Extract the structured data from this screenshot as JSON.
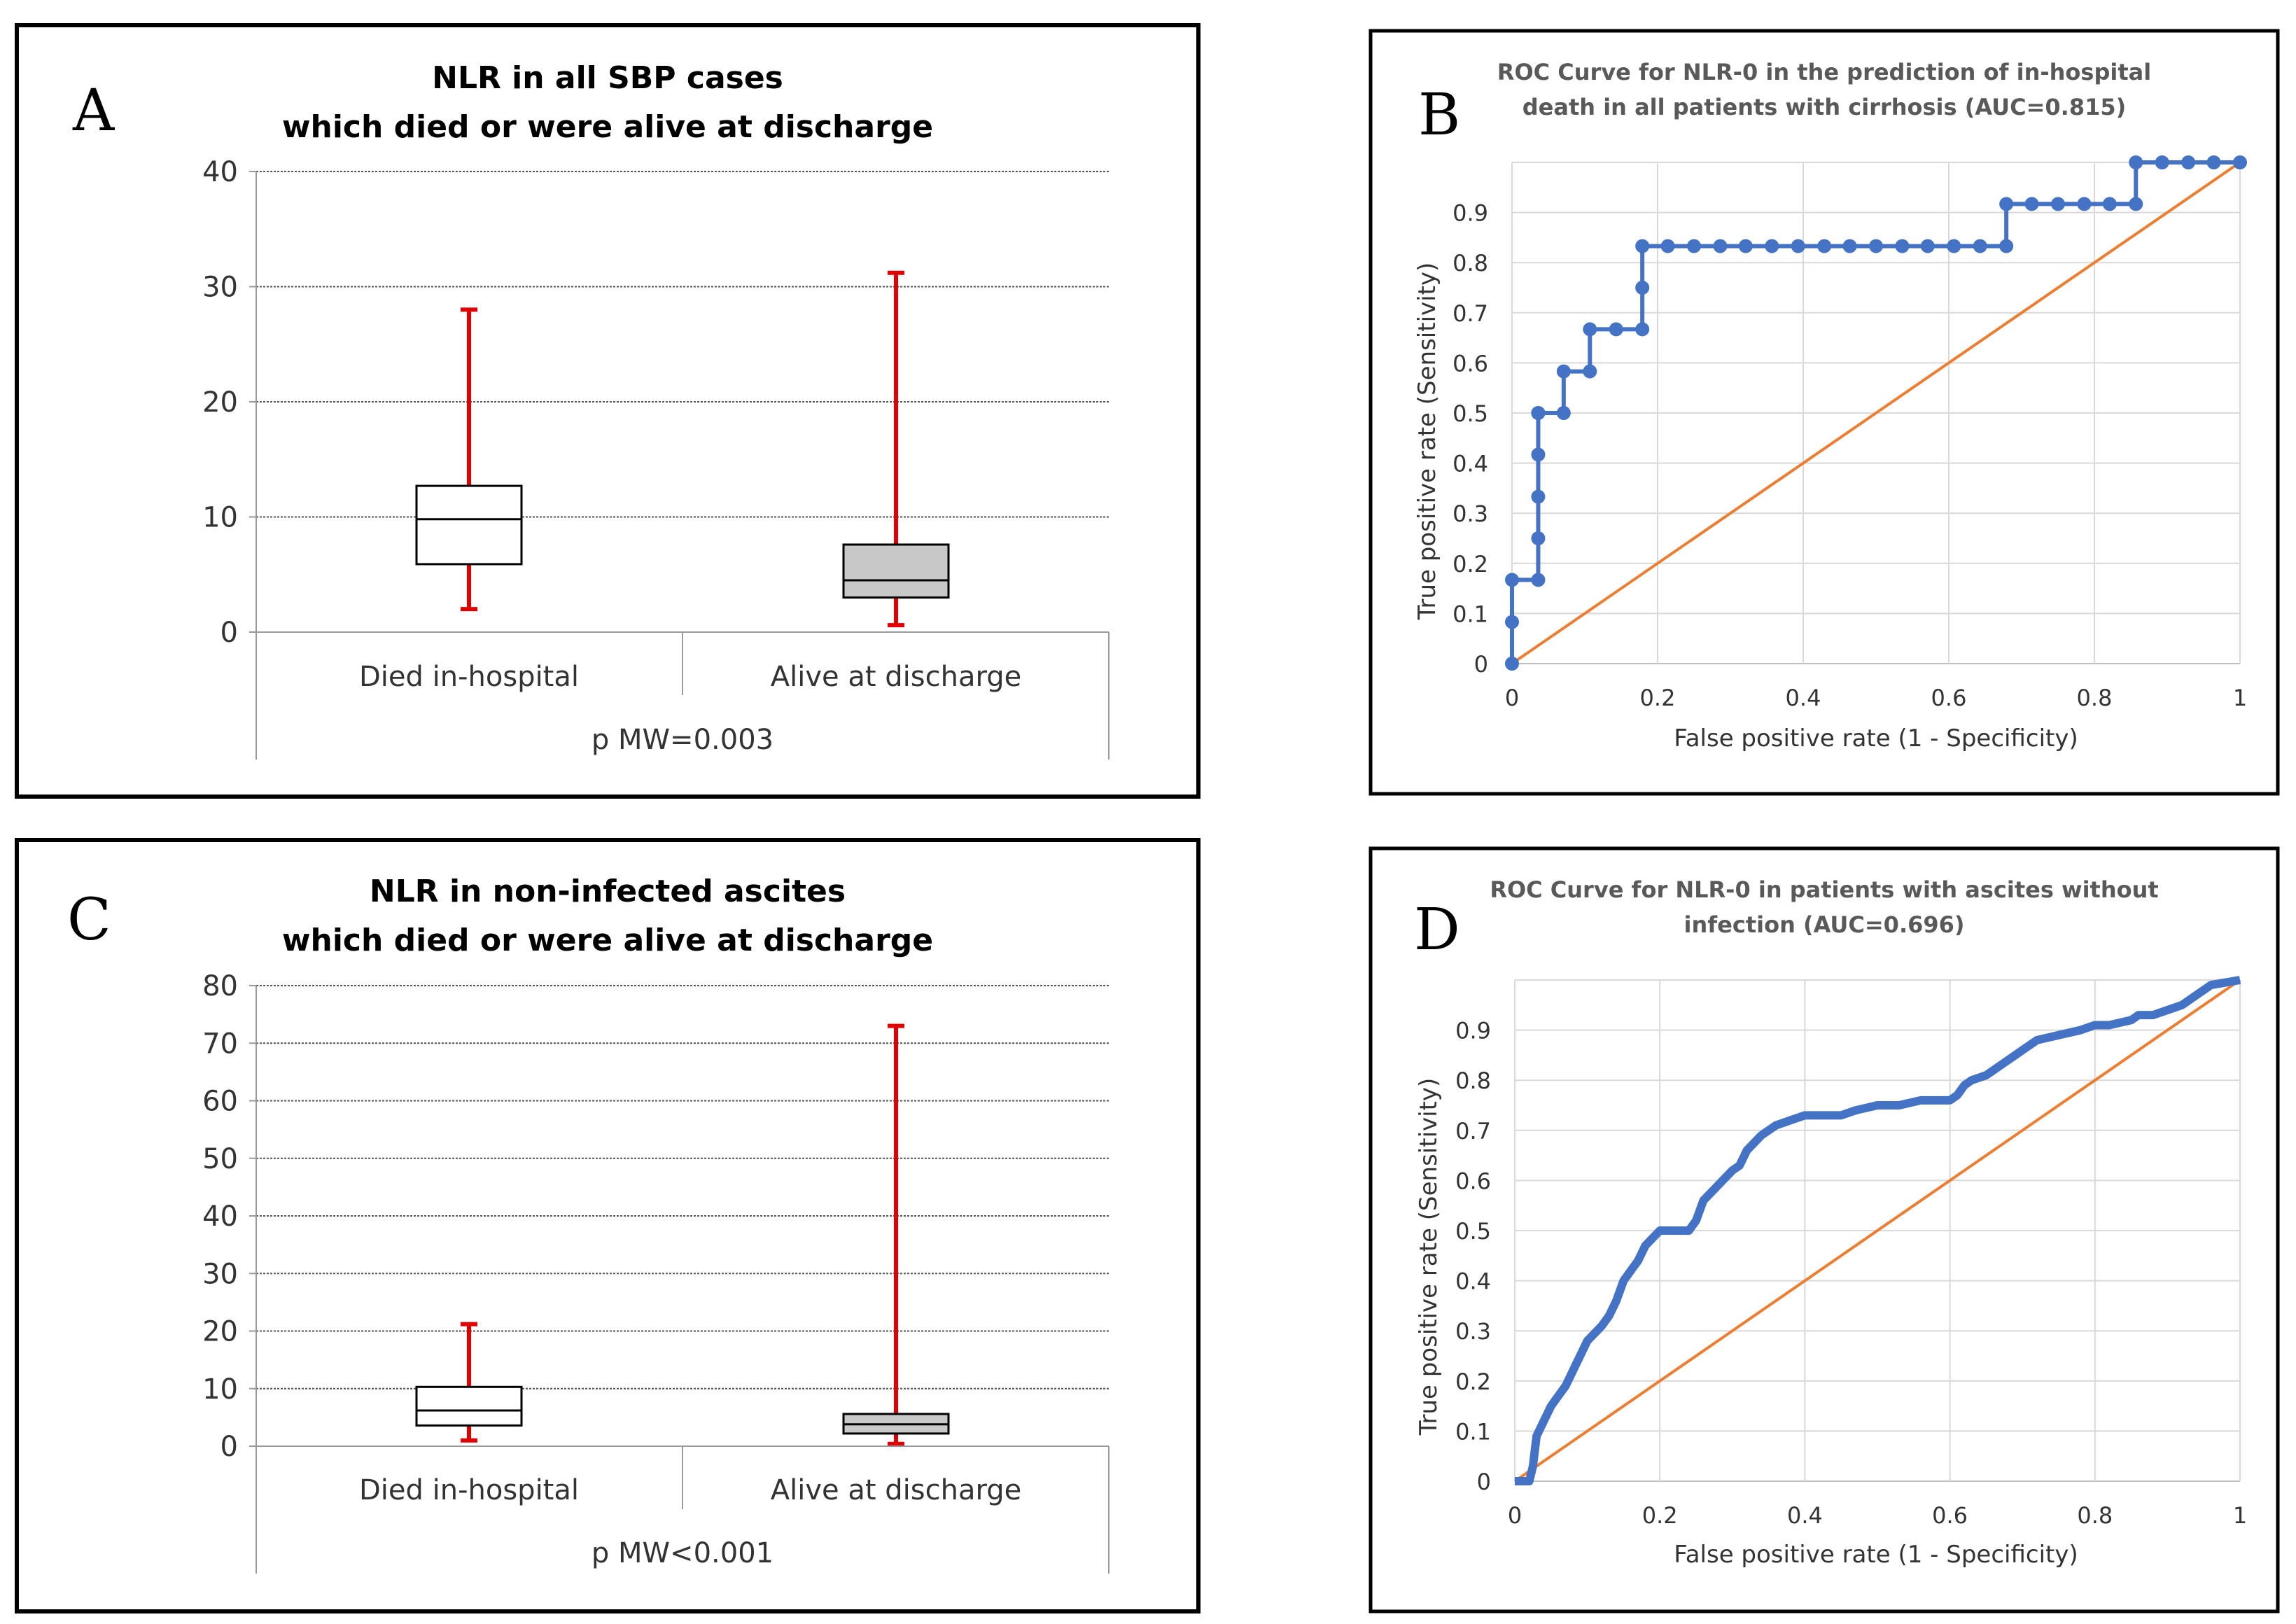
{
  "chart_data": [
    {
      "id": "A",
      "type": "box",
      "panel_letter": "A",
      "title_lines": [
        "NLR in all SBP cases",
        "which died or were alive at discharge"
      ],
      "ylim": [
        0,
        40
      ],
      "yticks": [
        "0",
        "10",
        "20",
        "30",
        "40"
      ],
      "ytick_values": [
        0,
        10,
        20,
        30,
        40
      ],
      "categories": [
        "Died in-hospital",
        "Alive at discharge"
      ],
      "boxes": [
        {
          "min": 2,
          "q1": 5.9,
          "median": 9.8,
          "q3": 12.7,
          "max": 28,
          "fill": "#ffffff"
        },
        {
          "min": 0.6,
          "q1": 3.0,
          "median": 4.5,
          "q3": 7.6,
          "max": 31.2,
          "fill": "#c8c8c8"
        }
      ],
      "footer": "p MW=0.003",
      "whisker_color": "#e00000"
    },
    {
      "id": "B",
      "type": "line",
      "panel_letter": "B",
      "title_lines": [
        "ROC Curve for NLR-0 in the prediction of in-hospital",
        "death in all patients with cirrhosis (AUC=0.815)"
      ],
      "xlabel": "False positive rate (1 - Specificity)",
      "ylabel": "True positive rate (Sensitivity)",
      "xlim": [
        0,
        1
      ],
      "ylim": [
        0,
        1
      ],
      "xticks": [
        "0",
        "0.2",
        "0.4",
        "0.6",
        "0.8",
        "1"
      ],
      "xtick_values": [
        0,
        0.2,
        0.4,
        0.6,
        0.8,
        1
      ],
      "yticks": [
        "0",
        "0.1",
        "0.2",
        "0.3",
        "0.4",
        "0.5",
        "0.6",
        "0.7",
        "0.8",
        "0.9"
      ],
      "ytick_values": [
        0,
        0.1,
        0.2,
        0.3,
        0.4,
        0.5,
        0.6,
        0.7,
        0.8,
        0.9
      ],
      "roc_color": "#4472c4",
      "diag_color": "#ed7d31",
      "markers": true,
      "x": [
        0,
        0,
        0,
        0.036,
        0.036,
        0.036,
        0.036,
        0.036,
        0.036,
        0.071,
        0.071,
        0.107,
        0.107,
        0.143,
        0.179,
        0.179,
        0.179,
        0.214,
        0.25,
        0.286,
        0.321,
        0.357,
        0.393,
        0.429,
        0.464,
        0.5,
        0.536,
        0.571,
        0.607,
        0.643,
        0.679,
        0.679,
        0.714,
        0.75,
        0.786,
        0.821,
        0.857,
        0.857,
        0.893,
        0.929,
        0.964,
        1
      ],
      "y": [
        0,
        0.083,
        0.167,
        0.167,
        0.25,
        0.333,
        0.417,
        0.5,
        0.5,
        0.5,
        0.583,
        0.583,
        0.667,
        0.667,
        0.667,
        0.75,
        0.833,
        0.833,
        0.833,
        0.833,
        0.833,
        0.833,
        0.833,
        0.833,
        0.833,
        0.833,
        0.833,
        0.833,
        0.833,
        0.833,
        0.833,
        0.917,
        0.917,
        0.917,
        0.917,
        0.917,
        0.917,
        1,
        1,
        1,
        1,
        1
      ]
    },
    {
      "id": "C",
      "type": "box",
      "panel_letter": "C",
      "title_lines": [
        "NLR in non-infected ascites",
        "which died or were alive at discharge"
      ],
      "ylim": [
        0,
        80
      ],
      "yticks": [
        "0",
        "10",
        "20",
        "30",
        "40",
        "50",
        "60",
        "70",
        "80"
      ],
      "ytick_values": [
        0,
        10,
        20,
        30,
        40,
        50,
        60,
        70,
        80
      ],
      "categories": [
        "Died in-hospital",
        "Alive at discharge"
      ],
      "boxes": [
        {
          "min": 1,
          "q1": 3.6,
          "median": 6.2,
          "q3": 10.3,
          "max": 21.2,
          "fill": "#ffffff"
        },
        {
          "min": 0.4,
          "q1": 2.2,
          "median": 3.8,
          "q3": 5.6,
          "max": 73,
          "fill": "#c8c8c8"
        }
      ],
      "footer": "p MW<0.001",
      "whisker_color": "#e00000"
    },
    {
      "id": "D",
      "type": "line",
      "panel_letter": "D",
      "title_lines": [
        "ROC Curve for NLR-0 in patients with ascites without",
        "infection (AUC=0.696)"
      ],
      "xlabel": "False positive rate (1 - Specificity)",
      "ylabel": "True positive rate (Sensitivity)",
      "xlim": [
        0,
        1
      ],
      "ylim": [
        0,
        1
      ],
      "xticks": [
        "0",
        "0.2",
        "0.4",
        "0.6",
        "0.8",
        "1"
      ],
      "xtick_values": [
        0,
        0.2,
        0.4,
        0.6,
        0.8,
        1
      ],
      "yticks": [
        "0",
        "0.1",
        "0.2",
        "0.3",
        "0.4",
        "0.5",
        "0.6",
        "0.7",
        "0.8",
        "0.9"
      ],
      "ytick_values": [
        0,
        0.1,
        0.2,
        0.3,
        0.4,
        0.5,
        0.6,
        0.7,
        0.8,
        0.9
      ],
      "roc_color": "#4472c4",
      "diag_color": "#ed7d31",
      "markers": false,
      "x": [
        0,
        0.02,
        0.025,
        0.03,
        0.04,
        0.05,
        0.06,
        0.07,
        0.08,
        0.09,
        0.1,
        0.12,
        0.13,
        0.14,
        0.15,
        0.16,
        0.17,
        0.18,
        0.2,
        0.22,
        0.24,
        0.25,
        0.26,
        0.28,
        0.3,
        0.31,
        0.32,
        0.34,
        0.36,
        0.38,
        0.4,
        0.45,
        0.47,
        0.5,
        0.53,
        0.56,
        0.6,
        0.61,
        0.62,
        0.63,
        0.65,
        0.66,
        0.68,
        0.69,
        0.7,
        0.72,
        0.75,
        0.78,
        0.8,
        0.82,
        0.85,
        0.86,
        0.88,
        0.9,
        0.92,
        0.94,
        0.96,
        1
      ],
      "y": [
        0,
        0,
        0.03,
        0.09,
        0.12,
        0.15,
        0.17,
        0.19,
        0.22,
        0.25,
        0.28,
        0.31,
        0.33,
        0.36,
        0.4,
        0.42,
        0.44,
        0.47,
        0.5,
        0.5,
        0.5,
        0.52,
        0.56,
        0.59,
        0.62,
        0.63,
        0.66,
        0.69,
        0.71,
        0.72,
        0.73,
        0.73,
        0.74,
        0.75,
        0.75,
        0.76,
        0.76,
        0.77,
        0.79,
        0.8,
        0.81,
        0.82,
        0.84,
        0.85,
        0.86,
        0.88,
        0.89,
        0.9,
        0.91,
        0.91,
        0.92,
        0.93,
        0.93,
        0.94,
        0.95,
        0.97,
        0.99,
        1
      ]
    }
  ]
}
